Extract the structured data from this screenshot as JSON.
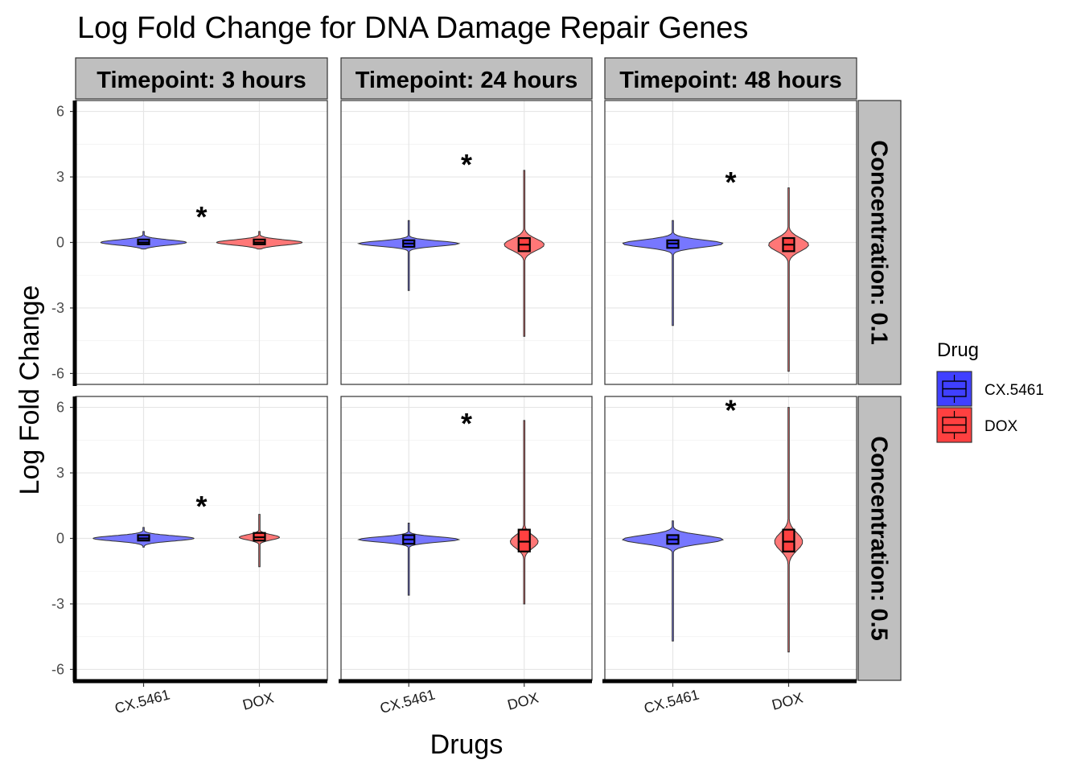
{
  "chart_data": {
    "type": "violin",
    "title": "Log Fold Change for DNA Damage Repair Genes",
    "xlabel": "Drugs",
    "ylabel": "Log Fold Change",
    "ylim": [
      -6.5,
      6.5
    ],
    "yticks": [
      -6,
      -3,
      0,
      3,
      6
    ],
    "categories": [
      "CX.5461",
      "DOX"
    ],
    "facet_columns": [
      "Timepoint: 3 hours",
      "Timepoint: 24 hours",
      "Timepoint: 48 hours"
    ],
    "facet_rows": [
      "Concentration: 0.1",
      "Concentration: 0.5"
    ],
    "legend": {
      "title": "Drug",
      "position": "right",
      "entries": [
        {
          "label": "CX.5461",
          "color": "#4040ff"
        },
        {
          "label": "DOX",
          "color": "#ff4040"
        }
      ]
    },
    "significance_marker": "*",
    "panels": [
      {
        "row": 0,
        "col": 0,
        "star_y": 1.3,
        "groups": [
          {
            "drug": "CX.5461",
            "min": -0.3,
            "max": 0.5,
            "q1": -0.05,
            "median": 0.0,
            "q3": 0.1,
            "width_scale": 0.85
          },
          {
            "drug": "DOX",
            "min": -0.3,
            "max": 0.5,
            "q1": -0.05,
            "median": 0.0,
            "q3": 0.1,
            "width_scale": 0.85
          }
        ]
      },
      {
        "row": 0,
        "col": 1,
        "star_y": 3.7,
        "groups": [
          {
            "drug": "CX.5461",
            "min": -2.2,
            "max": 1.0,
            "q1": -0.2,
            "median": -0.05,
            "q3": 0.1,
            "width_scale": 1.0
          },
          {
            "drug": "DOX",
            "min": -4.3,
            "max": 3.3,
            "q1": -0.4,
            "median": -0.1,
            "q3": 0.2,
            "width_scale": 0.4
          }
        ]
      },
      {
        "row": 0,
        "col": 2,
        "star_y": 2.9,
        "groups": [
          {
            "drug": "CX.5461",
            "min": -3.8,
            "max": 1.0,
            "q1": -0.25,
            "median": -0.05,
            "q3": 0.1,
            "width_scale": 1.0
          },
          {
            "drug": "DOX",
            "min": -5.9,
            "max": 2.5,
            "q1": -0.4,
            "median": -0.1,
            "q3": 0.2,
            "width_scale": 0.4
          }
        ]
      },
      {
        "row": 1,
        "col": 0,
        "star_y": 1.6,
        "groups": [
          {
            "drug": "CX.5461",
            "min": -0.4,
            "max": 0.5,
            "q1": -0.1,
            "median": 0.0,
            "q3": 0.15,
            "width_scale": 1.0
          },
          {
            "drug": "DOX",
            "min": -1.3,
            "max": 1.1,
            "q1": -0.1,
            "median": 0.05,
            "q3": 0.25,
            "width_scale": 0.4
          }
        ]
      },
      {
        "row": 1,
        "col": 1,
        "star_y": 5.4,
        "groups": [
          {
            "drug": "CX.5461",
            "min": -2.6,
            "max": 0.7,
            "q1": -0.25,
            "median": -0.05,
            "q3": 0.15,
            "width_scale": 1.0
          },
          {
            "drug": "DOX",
            "min": -3.0,
            "max": 5.4,
            "q1": -0.6,
            "median": -0.15,
            "q3": 0.4,
            "width_scale": 0.28
          }
        ]
      },
      {
        "row": 1,
        "col": 2,
        "star_y": 6.0,
        "groups": [
          {
            "drug": "CX.5461",
            "min": -4.7,
            "max": 0.8,
            "q1": -0.25,
            "median": -0.05,
            "q3": 0.15,
            "width_scale": 1.0
          },
          {
            "drug": "DOX",
            "min": -5.2,
            "max": 6.0,
            "q1": -0.6,
            "median": -0.15,
            "q3": 0.4,
            "width_scale": 0.28
          }
        ]
      }
    ]
  }
}
